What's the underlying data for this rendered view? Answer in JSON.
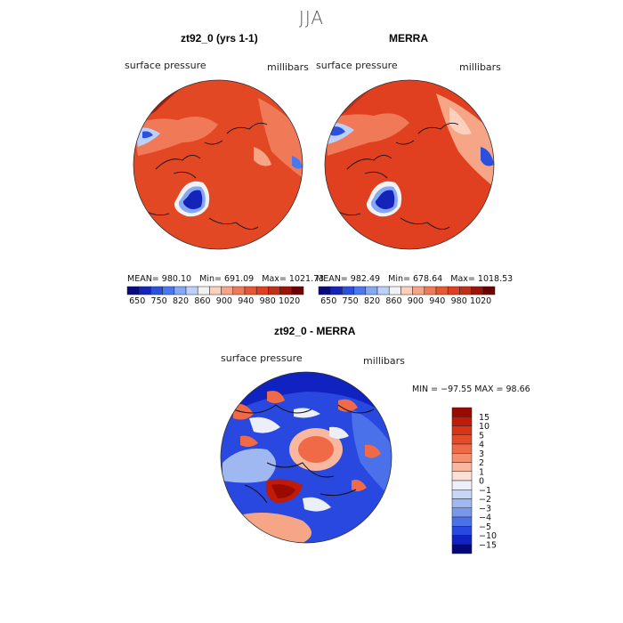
{
  "season": "JJA",
  "chart_data": [
    {
      "type": "heatmap",
      "projection": "north polar stereographic",
      "title": "zt92_0 (yrs 1-1)",
      "variable": "surface pressure",
      "units": "millibars",
      "stats": {
        "mean": "980.10",
        "min": "691.09",
        "max": "1021.73"
      },
      "colorbar": {
        "levels": [
          "650",
          "750",
          "820",
          "860",
          "900",
          "940",
          "980",
          "1020"
        ],
        "colors": [
          "#080a80",
          "#1424b8",
          "#2b50e0",
          "#4a78f0",
          "#85a8f6",
          "#bcd0fa",
          "#f2f2f2",
          "#fbd0bc",
          "#f6a586",
          "#f07a58",
          "#e85830",
          "#e04020",
          "#c03018",
          "#9a1408",
          "#6e0000"
        ]
      }
    },
    {
      "type": "heatmap",
      "projection": "north polar stereographic",
      "title": "MERRA",
      "variable": "surface pressure",
      "units": "millibars",
      "stats": {
        "mean": "982.49",
        "min": "678.64",
        "max": "1018.53"
      },
      "colorbar": {
        "levels": [
          "650",
          "750",
          "820",
          "860",
          "900",
          "940",
          "980",
          "1020"
        ],
        "colors": [
          "#080a80",
          "#1424b8",
          "#2b50e0",
          "#4a78f0",
          "#85a8f6",
          "#bcd0fa",
          "#f2f2f2",
          "#fbd0bc",
          "#f6a586",
          "#f07a58",
          "#e85830",
          "#e04020",
          "#c03018",
          "#9a1408",
          "#6e0000"
        ]
      }
    },
    {
      "type": "heatmap",
      "projection": "north polar stereographic",
      "title": "zt92_0 - MERRA",
      "variable": "surface pressure",
      "units": "millibars",
      "stats": {
        "min": "-97.55",
        "max": "98.66"
      },
      "stats_text": "MIN = −97.55 MAX =   98.66",
      "colorbar": {
        "levels": [
          "15",
          "10",
          "5",
          "4",
          "3",
          "2",
          "1",
          "0",
          "−1",
          "−2",
          "−3",
          "−4",
          "−5",
          "−10",
          "−15"
        ],
        "colors": [
          "#9a0a00",
          "#c01a08",
          "#d83418",
          "#e84a28",
          "#f06a48",
          "#f49070",
          "#f8b8a0",
          "#fbe0d6",
          "#eceef8",
          "#c8d6f6",
          "#a0b8f2",
          "#7898ee",
          "#4a70ea",
          "#2848e0",
          "#1022c0",
          "#06087a"
        ]
      }
    }
  ]
}
